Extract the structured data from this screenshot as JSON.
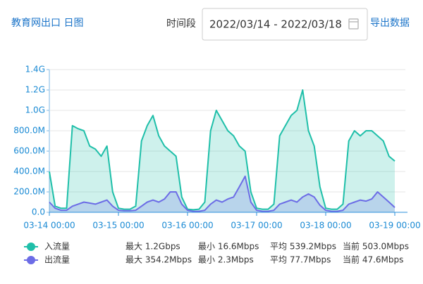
{
  "header": {
    "title": "教育网出口 日图",
    "period_label": "时间段",
    "date_range": "2022/03/14 - 2022/03/18",
    "export_button": "导出数据"
  },
  "chart_data": {
    "type": "area",
    "x": [
      "03-14 00:00",
      "03-14 02:00",
      "03-14 04:00",
      "03-14 06:00",
      "03-14 08:00",
      "03-14 10:00",
      "03-14 12:00",
      "03-14 14:00",
      "03-14 16:00",
      "03-14 18:00",
      "03-14 20:00",
      "03-14 22:00",
      "03-15 00:00",
      "03-15 02:00",
      "03-15 04:00",
      "03-15 06:00",
      "03-15 08:00",
      "03-15 10:00",
      "03-15 12:00",
      "03-15 14:00",
      "03-15 16:00",
      "03-15 18:00",
      "03-15 20:00",
      "03-15 22:00",
      "03-16 00:00",
      "03-16 02:00",
      "03-16 04:00",
      "03-16 06:00",
      "03-16 08:00",
      "03-16 10:00",
      "03-16 12:00",
      "03-16 14:00",
      "03-16 16:00",
      "03-16 18:00",
      "03-16 20:00",
      "03-16 22:00",
      "03-17 00:00",
      "03-17 02:00",
      "03-17 04:00",
      "03-17 06:00",
      "03-17 08:00",
      "03-17 10:00",
      "03-17 12:00",
      "03-17 14:00",
      "03-17 16:00",
      "03-17 18:00",
      "03-17 20:00",
      "03-17 22:00",
      "03-18 00:00",
      "03-18 02:00",
      "03-18 04:00",
      "03-18 06:00",
      "03-18 08:00",
      "03-18 10:00",
      "03-18 12:00",
      "03-18 14:00",
      "03-18 16:00",
      "03-18 18:00",
      "03-18 20:00",
      "03-18 22:00",
      "03-19 00:00"
    ],
    "xlim": [
      "03-14 00:00",
      "03-19 00:00"
    ],
    "xticks": [
      "03-14 00:00",
      "03-15 00:00",
      "03-16 00:00",
      "03-17 00:00",
      "03-18 00:00",
      "03-19 00:00"
    ],
    "ylim": [
      0,
      1400
    ],
    "yticks": [
      {
        "value": 0,
        "label": "0.0"
      },
      {
        "value": 200,
        "label": "200.0M"
      },
      {
        "value": 400,
        "label": "400.0M"
      },
      {
        "value": 600,
        "label": "600.0M"
      },
      {
        "value": 800,
        "label": "800.0M"
      },
      {
        "value": 1000,
        "label": "1.0G"
      },
      {
        "value": 1200,
        "label": "1.2G"
      },
      {
        "value": 1400,
        "label": "1.4G"
      }
    ],
    "grid": true,
    "series": [
      {
        "name": "入流量",
        "color": "#1fbfa9",
        "stats": [
          "最大 1.2Gbps",
          "最小 16.6Mbps",
          "平均 539.2Mbps",
          "当前 503.0Mbps"
        ],
        "values": [
          400,
          60,
          40,
          40,
          850,
          820,
          800,
          650,
          620,
          550,
          650,
          200,
          40,
          30,
          30,
          60,
          700,
          850,
          950,
          750,
          650,
          600,
          550,
          150,
          30,
          25,
          30,
          100,
          800,
          1000,
          900,
          800,
          750,
          650,
          600,
          200,
          40,
          30,
          30,
          80,
          750,
          850,
          950,
          1000,
          1200,
          800,
          650,
          250,
          40,
          30,
          30,
          80,
          700,
          800,
          750,
          800,
          800,
          750,
          700,
          550,
          503
        ]
      },
      {
        "name": "出流量",
        "color": "#6c6ce6",
        "stats": [
          "最大 354.2Mbps",
          "最小 2.3Mbps",
          "平均 77.7Mbps",
          "当前 47.6Mbps"
        ],
        "values": [
          100,
          40,
          20,
          20,
          60,
          80,
          100,
          90,
          80,
          100,
          120,
          60,
          20,
          15,
          15,
          20,
          60,
          100,
          120,
          100,
          130,
          200,
          200,
          80,
          20,
          10,
          10,
          20,
          80,
          120,
          100,
          130,
          150,
          250,
          354,
          100,
          20,
          10,
          10,
          20,
          80,
          100,
          120,
          100,
          150,
          180,
          150,
          70,
          20,
          10,
          10,
          20,
          80,
          100,
          120,
          110,
          130,
          200,
          150,
          100,
          47.6
        ]
      }
    ]
  }
}
